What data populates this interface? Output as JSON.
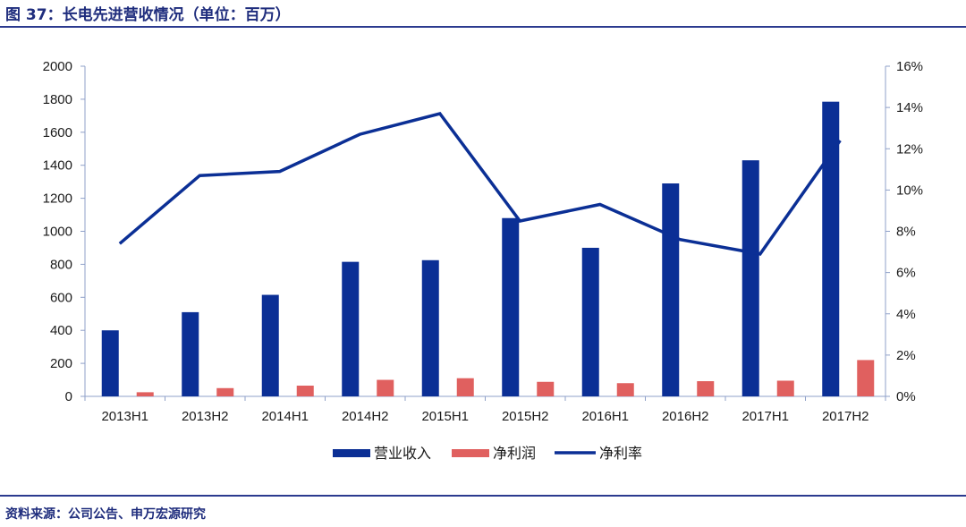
{
  "header": {
    "title": "图 37：长电先进营收情况（单位：百万）"
  },
  "footer": {
    "source": "资料来源：公司公告、申万宏源研究"
  },
  "colors": {
    "revenue": "#0b2f95",
    "profit": "#e0605f",
    "margin": "#0b2f95",
    "axis": "#8fa0c8",
    "text": "#1a1a1a",
    "title": "#1f2d7d"
  },
  "chart_data": {
    "type": "bar",
    "title": "长电先进营收情况（单位：百万）",
    "categories": [
      "2013H1",
      "2013H2",
      "2014H1",
      "2014H2",
      "2015H1",
      "2015H2",
      "2016H1",
      "2016H2",
      "2017H1",
      "2017H2"
    ],
    "series": [
      {
        "name": "营业收入",
        "kind": "bar",
        "axis": "left",
        "values": [
          400,
          510,
          615,
          815,
          825,
          1080,
          900,
          1290,
          1430,
          1785
        ]
      },
      {
        "name": "净利润",
        "kind": "bar",
        "axis": "left",
        "values": [
          25,
          50,
          65,
          100,
          110,
          88,
          80,
          92,
          95,
          220
        ]
      },
      {
        "name": "净利率",
        "kind": "line",
        "axis": "right",
        "values": [
          7.4,
          10.7,
          10.9,
          12.7,
          13.7,
          8.5,
          9.3,
          7.6,
          6.9,
          12.4
        ]
      }
    ],
    "y_left": {
      "min": 0,
      "max": 2000,
      "step": 200,
      "ticks": [
        "0",
        "200",
        "400",
        "600",
        "800",
        "1000",
        "1200",
        "1400",
        "1600",
        "1800",
        "2000"
      ]
    },
    "y_right": {
      "min": 0,
      "max": 16,
      "step": 2,
      "ticks": [
        "0%",
        "2%",
        "4%",
        "6%",
        "8%",
        "10%",
        "12%",
        "14%",
        "16%"
      ]
    },
    "legend": [
      "营业收入",
      "净利润",
      "净利率"
    ],
    "legend_position": "bottom"
  }
}
